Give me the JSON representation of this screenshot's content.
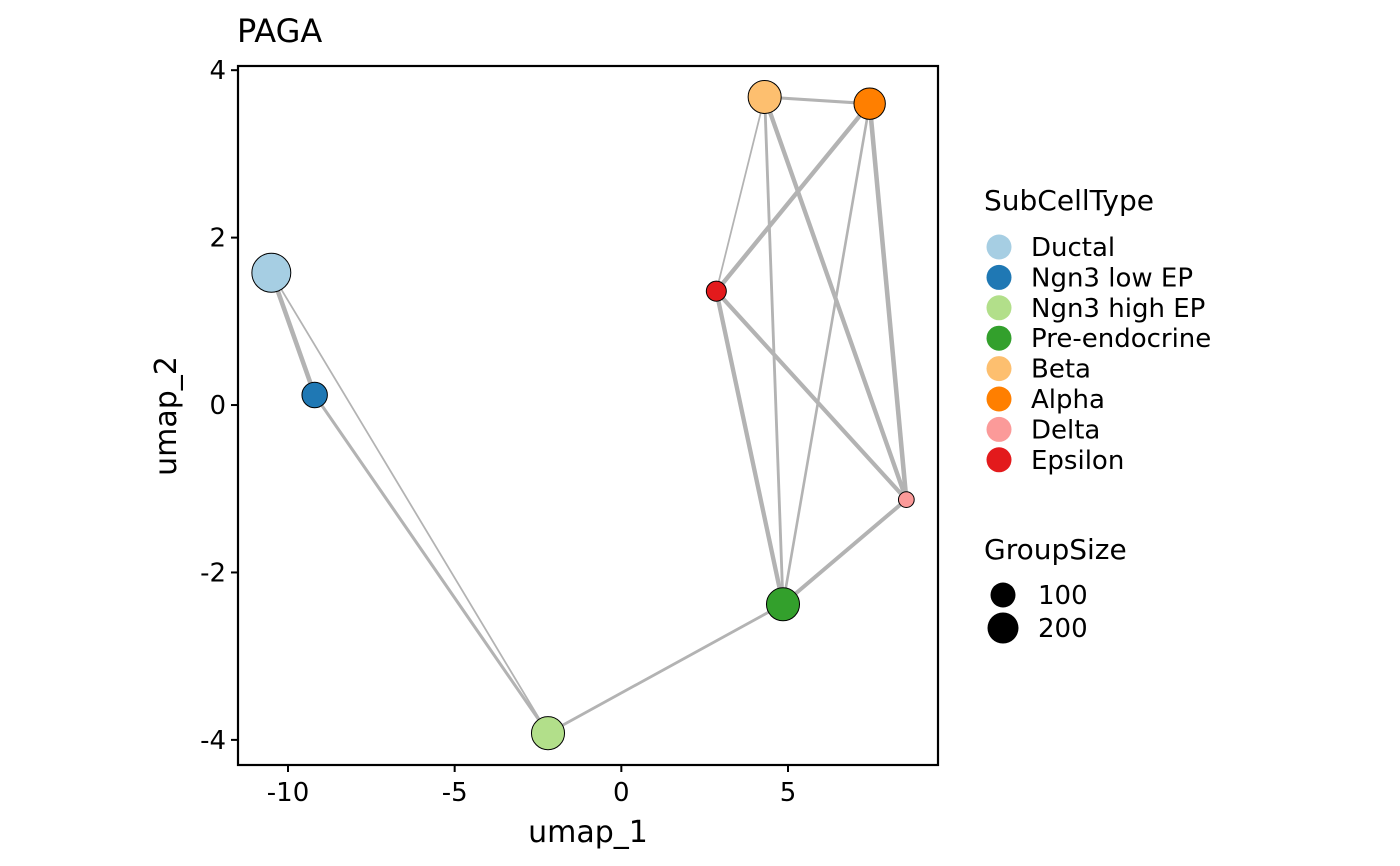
{
  "chart_data": {
    "type": "scatter",
    "title": "PAGA",
    "xlabel": "umap_1",
    "ylabel": "umap_2",
    "xlim": [
      -11.5,
      9.5
    ],
    "ylim": [
      -4.3,
      4.05
    ],
    "xticks": [
      -10,
      -5,
      0,
      5
    ],
    "xtick_labels": [
      "-10",
      "-5",
      "0",
      "5"
    ],
    "yticks": [
      -4,
      -2,
      0,
      2,
      4
    ],
    "ytick_labels": [
      "-4",
      "-2",
      "0",
      "2",
      "4"
    ],
    "grid": false,
    "nodes": [
      {
        "name": "Ductal",
        "x": -10.5,
        "y": 1.58,
        "size": 240,
        "color": "#a6cee3"
      },
      {
        "name": "Ngn3 low EP",
        "x": -9.2,
        "y": 0.12,
        "size": 80,
        "color": "#1f78b4"
      },
      {
        "name": "Ngn3 high EP",
        "x": -2.2,
        "y": -3.92,
        "size": 160,
        "color": "#b2df8a"
      },
      {
        "name": "Pre-endocrine",
        "x": 4.85,
        "y": -2.38,
        "size": 160,
        "color": "#33a02c"
      },
      {
        "name": "Beta",
        "x": 4.3,
        "y": 3.68,
        "size": 160,
        "color": "#fdbf6f"
      },
      {
        "name": "Alpha",
        "x": 7.45,
        "y": 3.6,
        "size": 140,
        "color": "#ff7f00"
      },
      {
        "name": "Delta",
        "x": 8.55,
        "y": -1.13,
        "size": 18,
        "color": "#fb9a99"
      },
      {
        "name": "Epsilon",
        "x": 2.85,
        "y": 1.36,
        "size": 40,
        "color": "#e31a1c"
      }
    ],
    "edges": [
      {
        "from": "Ductal",
        "to": "Ngn3 low EP",
        "weight": 0.9
      },
      {
        "from": "Ductal",
        "to": "Ngn3 high EP",
        "weight": 0.25
      },
      {
        "from": "Ngn3 low EP",
        "to": "Ngn3 high EP",
        "weight": 0.55
      },
      {
        "from": "Ngn3 high EP",
        "to": "Pre-endocrine",
        "weight": 0.5
      },
      {
        "from": "Pre-endocrine",
        "to": "Epsilon",
        "weight": 0.85
      },
      {
        "from": "Pre-endocrine",
        "to": "Beta",
        "weight": 0.5
      },
      {
        "from": "Pre-endocrine",
        "to": "Alpha",
        "weight": 0.45
      },
      {
        "from": "Pre-endocrine",
        "to": "Delta",
        "weight": 0.75
      },
      {
        "from": "Epsilon",
        "to": "Beta",
        "weight": 0.25
      },
      {
        "from": "Epsilon",
        "to": "Alpha",
        "weight": 0.85
      },
      {
        "from": "Epsilon",
        "to": "Delta",
        "weight": 0.8
      },
      {
        "from": "Beta",
        "to": "Alpha",
        "weight": 0.55
      },
      {
        "from": "Beta",
        "to": "Delta",
        "weight": 0.85
      },
      {
        "from": "Alpha",
        "to": "Delta",
        "weight": 0.9
      }
    ],
    "legend": {
      "color_title": "SubCellType",
      "color_entries": [
        {
          "label": "Ductal",
          "color": "#a6cee3"
        },
        {
          "label": "Ngn3 low EP",
          "color": "#1f78b4"
        },
        {
          "label": "Ngn3 high EP",
          "color": "#b2df8a"
        },
        {
          "label": "Pre-endocrine",
          "color": "#33a02c"
        },
        {
          "label": "Beta",
          "color": "#fdbf6f"
        },
        {
          "label": "Alpha",
          "color": "#ff7f00"
        },
        {
          "label": "Delta",
          "color": "#fb9a99"
        },
        {
          "label": "Epsilon",
          "color": "#e31a1c"
        }
      ],
      "size_title": "GroupSize",
      "size_entries": [
        {
          "label": "100",
          "value": 100
        },
        {
          "label": "200",
          "value": 200
        }
      ],
      "placement": "right"
    },
    "edge_color": "#b3b3b3",
    "node_outline_color": "#000000"
  }
}
